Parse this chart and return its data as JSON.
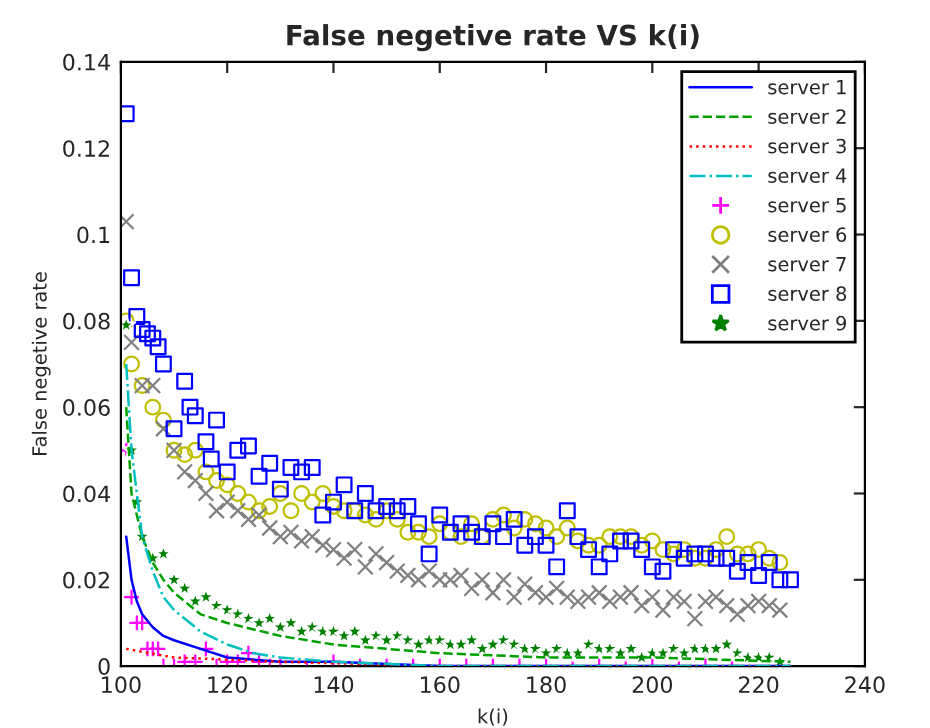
{
  "chart_data": {
    "type": "scatter",
    "title": "False negetive rate VS k(i)",
    "xlabel": "k(i)",
    "ylabel": "False negetive rate",
    "xlim": [
      100,
      240
    ],
    "xticks": [
      100,
      120,
      140,
      160,
      180,
      200,
      220,
      240
    ],
    "ylim": [
      0,
      0.14
    ],
    "yticks": [
      {
        "value": 0,
        "label": "0"
      },
      0.02,
      0.04,
      0.06,
      0.08,
      0.1,
      0.12,
      0.14
    ],
    "grid": false,
    "legend": "top right",
    "series": [
      {
        "name": "server 1",
        "type": "line",
        "line_style": "solid",
        "color": "#0000ff",
        "x": [
          101,
          102,
          103,
          104,
          106,
          108,
          110,
          115,
          120,
          130,
          140,
          150,
          160,
          180,
          200,
          226
        ],
        "values": [
          0.03,
          0.02,
          0.015,
          0.012,
          0.009,
          0.007,
          0.006,
          0.004,
          0.002,
          0.001,
          0.001,
          0.0005,
          0,
          0,
          0,
          0
        ]
      },
      {
        "name": "server 2",
        "type": "line",
        "line_style": "dashed",
        "color": "#00a000",
        "x": [
          101,
          102,
          104,
          106,
          108,
          110,
          115,
          120,
          130,
          140,
          150,
          160,
          180,
          200,
          226
        ],
        "values": [
          0.06,
          0.04,
          0.03,
          0.024,
          0.02,
          0.017,
          0.012,
          0.01,
          0.007,
          0.005,
          0.004,
          0.003,
          0.002,
          0.002,
          0.001
        ]
      },
      {
        "name": "server 3",
        "type": "line",
        "line_style": "dotted",
        "color": "#ff0000",
        "x": [
          101,
          110,
          130,
          160,
          226
        ],
        "values": [
          0.004,
          0.002,
          0.001,
          0,
          0
        ]
      },
      {
        "name": "server 4",
        "type": "line",
        "line_style": "dashdot",
        "color": "#00bfbf",
        "x": [
          101,
          102,
          103,
          104,
          106,
          108,
          110,
          115,
          120,
          125,
          130,
          140,
          160,
          226
        ],
        "values": [
          0.07,
          0.05,
          0.04,
          0.03,
          0.022,
          0.016,
          0.013,
          0.008,
          0.005,
          0.003,
          0.002,
          0.001,
          0,
          0
        ]
      },
      {
        "name": "server 5",
        "marker": "plus",
        "color": "#ff00ff",
        "x": [
          101,
          102,
          103,
          104,
          105,
          106,
          107,
          108,
          110,
          112,
          114,
          116,
          118,
          120,
          122,
          124,
          126,
          128,
          130,
          135,
          140,
          145,
          150,
          155,
          160,
          165,
          170,
          175,
          180,
          185,
          190,
          195,
          200,
          205,
          210,
          215
        ],
        "values": [
          0.05,
          0.016,
          0.01,
          0.01,
          0.004,
          0.004,
          0.004,
          0,
          0,
          0.001,
          0.001,
          0.004,
          0,
          0.001,
          0.001,
          0.003,
          0.001,
          0,
          0,
          0,
          0.001,
          0,
          0,
          0,
          0,
          0,
          0,
          0,
          0,
          0,
          0,
          0,
          0,
          0,
          0,
          0
        ]
      },
      {
        "name": "server 6",
        "marker": "circle",
        "color": "#bfbf00",
        "x": [
          101,
          102,
          104,
          106,
          108,
          110,
          112,
          114,
          116,
          118,
          120,
          122,
          124,
          126,
          128,
          130,
          132,
          134,
          136,
          138,
          140,
          142,
          144,
          146,
          148,
          150,
          152,
          154,
          156,
          158,
          160,
          162,
          164,
          166,
          168,
          170,
          172,
          174,
          176,
          178,
          180,
          182,
          184,
          186,
          188,
          190,
          192,
          194,
          196,
          198,
          200,
          202,
          204,
          206,
          208,
          210,
          212,
          214,
          216,
          218,
          220,
          222,
          224
        ],
        "values": [
          0.08,
          0.07,
          0.065,
          0.06,
          0.057,
          0.05,
          0.049,
          0.05,
          0.045,
          0.043,
          0.042,
          0.04,
          0.038,
          0.036,
          0.037,
          0.04,
          0.036,
          0.04,
          0.038,
          0.04,
          0.037,
          0.036,
          0.036,
          0.035,
          0.034,
          0.036,
          0.034,
          0.031,
          0.031,
          0.03,
          0.033,
          0.031,
          0.03,
          0.033,
          0.03,
          0.034,
          0.035,
          0.032,
          0.034,
          0.033,
          0.032,
          0.03,
          0.032,
          0.029,
          0.028,
          0.028,
          0.03,
          0.03,
          0.03,
          0.028,
          0.029,
          0.027,
          0.026,
          0.027,
          0.025,
          0.025,
          0.027,
          0.03,
          0.026,
          0.026,
          0.027,
          0.025,
          0.024
        ]
      },
      {
        "name": "server 7",
        "marker": "cross",
        "color": "#808080",
        "x": [
          101,
          102,
          104,
          106,
          108,
          110,
          112,
          114,
          116,
          118,
          120,
          122,
          124,
          126,
          128,
          130,
          132,
          134,
          136,
          138,
          140,
          142,
          144,
          146,
          148,
          150,
          152,
          154,
          156,
          158,
          160,
          162,
          164,
          166,
          168,
          170,
          172,
          174,
          176,
          178,
          180,
          182,
          184,
          186,
          188,
          190,
          192,
          194,
          196,
          198,
          200,
          202,
          204,
          206,
          208,
          210,
          212,
          214,
          216,
          218,
          220,
          222,
          224
        ],
        "values": [
          0.103,
          0.075,
          0.065,
          0.065,
          0.055,
          0.05,
          0.045,
          0.043,
          0.04,
          0.036,
          0.038,
          0.036,
          0.034,
          0.035,
          0.032,
          0.03,
          0.031,
          0.029,
          0.03,
          0.028,
          0.027,
          0.025,
          0.027,
          0.023,
          0.026,
          0.024,
          0.022,
          0.021,
          0.02,
          0.022,
          0.02,
          0.02,
          0.021,
          0.018,
          0.02,
          0.017,
          0.02,
          0.016,
          0.019,
          0.017,
          0.016,
          0.018,
          0.016,
          0.015,
          0.016,
          0.017,
          0.015,
          0.016,
          0.017,
          0.014,
          0.016,
          0.013,
          0.016,
          0.015,
          0.011,
          0.015,
          0.016,
          0.014,
          0.012,
          0.014,
          0.015,
          0.014,
          0.013
        ]
      },
      {
        "name": "server 8",
        "marker": "square",
        "color": "#0000ff",
        "x": [
          101,
          102,
          103,
          104,
          105,
          106,
          107,
          108,
          110,
          112,
          113,
          114,
          116,
          117,
          118,
          120,
          122,
          124,
          126,
          128,
          130,
          132,
          134,
          136,
          138,
          140,
          142,
          144,
          146,
          148,
          150,
          152,
          154,
          156,
          158,
          160,
          162,
          164,
          166,
          168,
          170,
          172,
          174,
          176,
          178,
          180,
          182,
          184,
          186,
          188,
          190,
          192,
          194,
          196,
          198,
          200,
          202,
          204,
          206,
          208,
          210,
          212,
          214,
          216,
          218,
          220,
          222,
          224,
          226
        ],
        "values": [
          0.128,
          0.09,
          0.081,
          0.078,
          0.077,
          0.076,
          0.074,
          0.07,
          0.055,
          0.066,
          0.06,
          0.058,
          0.052,
          0.048,
          0.057,
          0.045,
          0.05,
          0.051,
          0.044,
          0.047,
          0.041,
          0.046,
          0.045,
          0.046,
          0.035,
          0.038,
          0.042,
          0.036,
          0.04,
          0.036,
          0.037,
          0.036,
          0.037,
          0.033,
          0.026,
          0.035,
          0.031,
          0.033,
          0.031,
          0.03,
          0.033,
          0.03,
          0.034,
          0.028,
          0.03,
          0.028,
          0.023,
          0.036,
          0.03,
          0.027,
          0.023,
          0.026,
          0.029,
          0.029,
          0.027,
          0.023,
          0.022,
          0.027,
          0.025,
          0.026,
          0.026,
          0.025,
          0.025,
          0.022,
          0.024,
          0.021,
          0.024,
          0.02,
          0.02
        ]
      },
      {
        "name": "server 9",
        "marker": "star",
        "color": "#008000",
        "x": [
          101,
          102,
          103,
          104,
          106,
          108,
          110,
          112,
          114,
          116,
          118,
          120,
          122,
          124,
          126,
          128,
          130,
          132,
          134,
          136,
          138,
          140,
          142,
          144,
          146,
          148,
          150,
          152,
          154,
          156,
          158,
          160,
          162,
          164,
          166,
          168,
          170,
          172,
          174,
          176,
          178,
          180,
          182,
          184,
          186,
          188,
          190,
          192,
          194,
          196,
          198,
          200,
          202,
          204,
          206,
          208,
          210,
          212,
          214,
          216,
          218,
          220,
          222,
          224
        ],
        "values": [
          0.079,
          0.05,
          0.038,
          0.03,
          0.025,
          0.026,
          0.02,
          0.018,
          0.015,
          0.016,
          0.014,
          0.013,
          0.012,
          0.011,
          0.01,
          0.011,
          0.009,
          0.01,
          0.008,
          0.009,
          0.008,
          0.008,
          0.007,
          0.008,
          0.006,
          0.007,
          0.006,
          0.007,
          0.006,
          0.005,
          0.006,
          0.006,
          0.005,
          0.005,
          0.006,
          0.004,
          0.005,
          0.006,
          0.005,
          0.004,
          0.004,
          0.003,
          0.004,
          0.003,
          0.003,
          0.005,
          0.004,
          0.004,
          0.003,
          0.004,
          0.002,
          0.003,
          0.003,
          0.004,
          0.003,
          0.004,
          0.004,
          0.004,
          0.005,
          0.003,
          0.002,
          0.002,
          0.002,
          0.001
        ]
      }
    ]
  }
}
